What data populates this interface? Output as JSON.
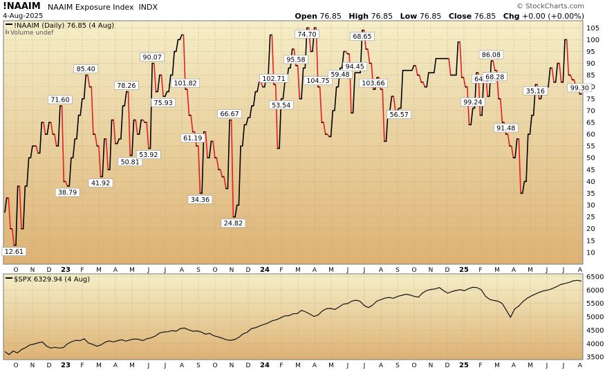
{
  "header": {
    "symbol": "!NAAIM",
    "name": "NAAIM Exposure Index",
    "exchange": "INDX",
    "date": "4-Aug-2025",
    "brand": "© StockCharts.com",
    "open_label": "Open",
    "open": "76.85",
    "high_label": "High",
    "high": "76.85",
    "low_label": "Low",
    "low": "76.85",
    "close_label": "Close",
    "close": "76.85",
    "chg_label": "Chg",
    "chg": "+0.00 (+0.00%)"
  },
  "colors": {
    "panel_top": "#f5eec8",
    "panel_bottom": "#ddb274",
    "line_up": "#000000",
    "line_down": "#e31b23",
    "grid": "#b6a77c"
  },
  "chart_data": [
    {
      "type": "line",
      "title": "!NAAIM (Daily) 76.85 (4 Aug)",
      "subtitle": "Volume undef",
      "x_ticks": [
        "O",
        "N",
        "D",
        "23",
        "F",
        "M",
        "A",
        "M",
        "J",
        "J",
        "A",
        "S",
        "O",
        "N",
        "D",
        "24",
        "F",
        "M",
        "A",
        "M",
        "J",
        "J",
        "A",
        "S",
        "O",
        "N",
        "D",
        "25",
        "F",
        "M",
        "A",
        "M",
        "J",
        "J",
        "A"
      ],
      "y_ticks": [
        10,
        15,
        20,
        25,
        30,
        35,
        40,
        45,
        50,
        55,
        60,
        65,
        70,
        75,
        80,
        85,
        90,
        95,
        100,
        105
      ],
      "ylim": [
        5,
        108
      ],
      "grid": true,
      "values": [
        27,
        33,
        33,
        20,
        20,
        13,
        13,
        38,
        38,
        20,
        20,
        38,
        38,
        50,
        50,
        55,
        55,
        55,
        52,
        52,
        65,
        65,
        60,
        60,
        65,
        65,
        60,
        60,
        55,
        55,
        72,
        72,
        40,
        40,
        38,
        38,
        50,
        50,
        58,
        58,
        68,
        68,
        75,
        75,
        85,
        85,
        80,
        80,
        60,
        60,
        55,
        55,
        42,
        42,
        58,
        58,
        45,
        45,
        66,
        66,
        56,
        56,
        58,
        58,
        72,
        72,
        78,
        78,
        51,
        51,
        66,
        66,
        60,
        60,
        66,
        66,
        65,
        65,
        54,
        54,
        90,
        90,
        78,
        78,
        85,
        85,
        76,
        76,
        78,
        78,
        85,
        85,
        95,
        95,
        100,
        100,
        102,
        102,
        79,
        79,
        68,
        68,
        61,
        61,
        55,
        55,
        35,
        35,
        61,
        61,
        50,
        50,
        57,
        57,
        50,
        50,
        45,
        45,
        42,
        42,
        37,
        37,
        66,
        66,
        25,
        25,
        30,
        30,
        55,
        55,
        64,
        64,
        67,
        67,
        72,
        72,
        78,
        78,
        82,
        82,
        80,
        80,
        85,
        85,
        102,
        102,
        81,
        81,
        54,
        54,
        75,
        75,
        82,
        82,
        88,
        88,
        96,
        96,
        89,
        89,
        75,
        75,
        88,
        88,
        105,
        105,
        95,
        95,
        105,
        105,
        80,
        80,
        65,
        65,
        60,
        60,
        59,
        59,
        70,
        70,
        80,
        80,
        88,
        88,
        95,
        95,
        94,
        94,
        69,
        69,
        86,
        86,
        86,
        86,
        104,
        104,
        96,
        96,
        90,
        90,
        79,
        79,
        84,
        84,
        79,
        79,
        57,
        57,
        70,
        70,
        76,
        76,
        70,
        70,
        71,
        71,
        87,
        87,
        87,
        87,
        87,
        87,
        89,
        89,
        85,
        85,
        82,
        82,
        80,
        80,
        86,
        86,
        86,
        86,
        92,
        92,
        92,
        92,
        92,
        92,
        92,
        92,
        85,
        85,
        85,
        85,
        99,
        99,
        84,
        84,
        80,
        80,
        64,
        64,
        71,
        71,
        86,
        86,
        68,
        68,
        86,
        86,
        76,
        76,
        91,
        91,
        87,
        87,
        75,
        75,
        65,
        65,
        60,
        60,
        55,
        55,
        50,
        50,
        58,
        58,
        35,
        35,
        40,
        40,
        60,
        60,
        68,
        68,
        81,
        81,
        75,
        75,
        80,
        80,
        80,
        80,
        88,
        88,
        82,
        82,
        90,
        90,
        82,
        82,
        100,
        100,
        85,
        85,
        83,
        83,
        80,
        80,
        77,
        77
      ],
      "annotations": [
        {
          "label": "12.61",
          "index": 5,
          "pos": "below"
        },
        {
          "label": "71.60",
          "index": 30,
          "pos": "above"
        },
        {
          "label": "38.79",
          "index": 34,
          "pos": "below"
        },
        {
          "label": "85.40",
          "index": 44,
          "pos": "above"
        },
        {
          "label": "41.92",
          "index": 52,
          "pos": "below"
        },
        {
          "label": "78.26",
          "index": 66,
          "pos": "above"
        },
        {
          "label": "50.81",
          "index": 68,
          "pos": "below"
        },
        {
          "label": "53.92",
          "index": 78,
          "pos": "below"
        },
        {
          "label": "90.07",
          "index": 80,
          "pos": "above"
        },
        {
          "label": "75.93",
          "index": 86,
          "pos": "below"
        },
        {
          "label": "101.82",
          "index": 98,
          "pos": "above"
        },
        {
          "label": "61.19",
          "index": 102,
          "pos": "below"
        },
        {
          "label": "34.36",
          "index": 106,
          "pos": "below"
        },
        {
          "label": "66.67",
          "index": 122,
          "pos": "above"
        },
        {
          "label": "24.82",
          "index": 124,
          "pos": "below"
        },
        {
          "label": "102.71",
          "index": 146,
          "pos": "above"
        },
        {
          "label": "53.54",
          "index": 150,
          "pos": "below"
        },
        {
          "label": "95.58",
          "index": 158,
          "pos": "above"
        },
        {
          "label": "74.70",
          "index": 164,
          "pos": "below"
        },
        {
          "label": "104.75",
          "index": 170,
          "pos": "above"
        },
        {
          "label": "59.48",
          "index": 182,
          "pos": "below"
        },
        {
          "label": "94.45",
          "index": 190,
          "pos": "above"
        },
        {
          "label": "68.65",
          "index": 194,
          "pos": "below"
        },
        {
          "label": "103.66",
          "index": 200,
          "pos": "above"
        },
        {
          "label": "56.57",
          "index": 214,
          "pos": "below"
        },
        {
          "label": "99.24",
          "index": 254,
          "pos": "above"
        },
        {
          "label": "64.10",
          "index": 260,
          "pos": "below"
        },
        {
          "label": "86.08",
          "index": 264,
          "pos": "above"
        },
        {
          "label": "68.28",
          "index": 266,
          "pos": "below"
        },
        {
          "label": "91.48",
          "index": 272,
          "pos": "above"
        },
        {
          "label": "35.16",
          "index": 288,
          "pos": "below"
        },
        {
          "label": "99.30",
          "index": 312,
          "pos": "above"
        }
      ]
    },
    {
      "type": "line",
      "title": "$SPX 6329.94 (4 Aug)",
      "x_ticks": [
        "O",
        "N",
        "D",
        "23",
        "F",
        "M",
        "A",
        "M",
        "J",
        "J",
        "A",
        "S",
        "O",
        "N",
        "D",
        "24",
        "F",
        "M",
        "A",
        "M",
        "J",
        "J",
        "A",
        "S",
        "O",
        "N",
        "D",
        "25",
        "F",
        "M",
        "A",
        "M",
        "J",
        "J",
        "A"
      ],
      "y_ticks": [
        3500,
        4000,
        4500,
        5000,
        5500,
        6000,
        6500
      ],
      "ylim": [
        3400,
        6600
      ],
      "grid": true,
      "values": [
        3700,
        3590,
        3720,
        3650,
        3780,
        3850,
        3950,
        3980,
        4030,
        4060,
        3900,
        3830,
        3860,
        3830,
        3850,
        3990,
        4070,
        4120,
        4110,
        4180,
        4020,
        3970,
        3900,
        3950,
        4050,
        4100,
        4060,
        4110,
        4140,
        4090,
        4140,
        4170,
        4160,
        4110,
        4180,
        4210,
        4280,
        4390,
        4430,
        4440,
        4480,
        4460,
        4560,
        4580,
        4510,
        4460,
        4470,
        4430,
        4350,
        4380,
        4290,
        4250,
        4200,
        4140,
        4120,
        4150,
        4230,
        4360,
        4420,
        4560,
        4590,
        4660,
        4710,
        4770,
        4850,
        4890,
        4960,
        5030,
        5040,
        5110,
        5120,
        5240,
        5180,
        5100,
        5010,
        5070,
        5220,
        5300,
        5310,
        5270,
        5370,
        5470,
        5490,
        5580,
        5620,
        5580,
        5420,
        5340,
        5430,
        5580,
        5640,
        5700,
        5720,
        5690,
        5760,
        5800,
        5840,
        5810,
        5760,
        5730,
        5890,
        5980,
        6020,
        6040,
        6090,
        5970,
        5880,
        5940,
        5980,
        6010,
        5970,
        6050,
        6100,
        6090,
        6010,
        5770,
        5650,
        5610,
        5580,
        5500,
        5250,
        4980,
        5290,
        5400,
        5570,
        5690,
        5780,
        5850,
        5920,
        5970,
        6000,
        6050,
        6120,
        6200,
        6240,
        6280,
        6340,
        6360,
        6330
      ]
    }
  ]
}
